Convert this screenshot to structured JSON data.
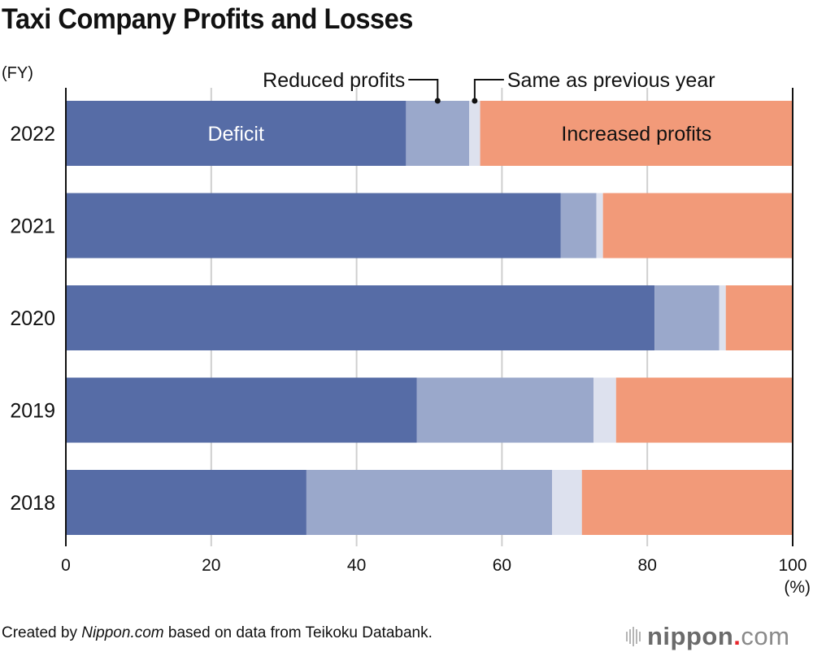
{
  "title": "Taxi Company Profits and Losses",
  "footer": {
    "prefix": "Created by ",
    "brand_italic": "Nippon.com",
    "suffix": " based on data from Teikoku Databank."
  },
  "logo": {
    "name_bold": "nippon",
    "dot": ".",
    "tld": "com",
    "icon": "sound-wave-bars-icon"
  },
  "chart_data": {
    "type": "bar",
    "orientation": "horizontal",
    "stacked": true,
    "normalized_percent": true,
    "title": "Taxi Company Profits and Losses",
    "ylabel": "(FY)",
    "xlabel": "(%)",
    "xlim": [
      0,
      100
    ],
    "xticks": [
      0,
      20,
      40,
      60,
      80,
      100
    ],
    "grid": true,
    "categories": [
      "2022",
      "2021",
      "2020",
      "2019",
      "2018"
    ],
    "series": [
      {
        "name": "Deficit",
        "color": "#566ca6",
        "values": [
          46.8,
          68.1,
          81.0,
          48.3,
          33.1
        ]
      },
      {
        "name": "Reduced profits",
        "color": "#9aa8cb",
        "values": [
          8.7,
          4.9,
          8.9,
          24.3,
          33.8
        ]
      },
      {
        "name": "Same as previous year",
        "color": "#dde1ee",
        "values": [
          1.5,
          0.9,
          0.9,
          3.1,
          4.1
        ]
      },
      {
        "name": "Increased profits",
        "color": "#f29a79",
        "values": [
          43.0,
          26.1,
          9.2,
          24.3,
          29.0
        ]
      }
    ],
    "annotations": {
      "inside_labels": [
        {
          "series": "Deficit",
          "category": "2022",
          "text": "Deficit",
          "color": "#ffffff"
        },
        {
          "series": "Increased profits",
          "category": "2022",
          "text": "Increased profits",
          "color": "#111111"
        }
      ],
      "callouts": [
        {
          "series": "Reduced profits",
          "category": "2022",
          "text": "Reduced profits",
          "side": "left"
        },
        {
          "series": "Same as previous year",
          "category": "2022",
          "text": "Same as previous year",
          "side": "right"
        }
      ]
    },
    "legend": "inline-labels"
  }
}
